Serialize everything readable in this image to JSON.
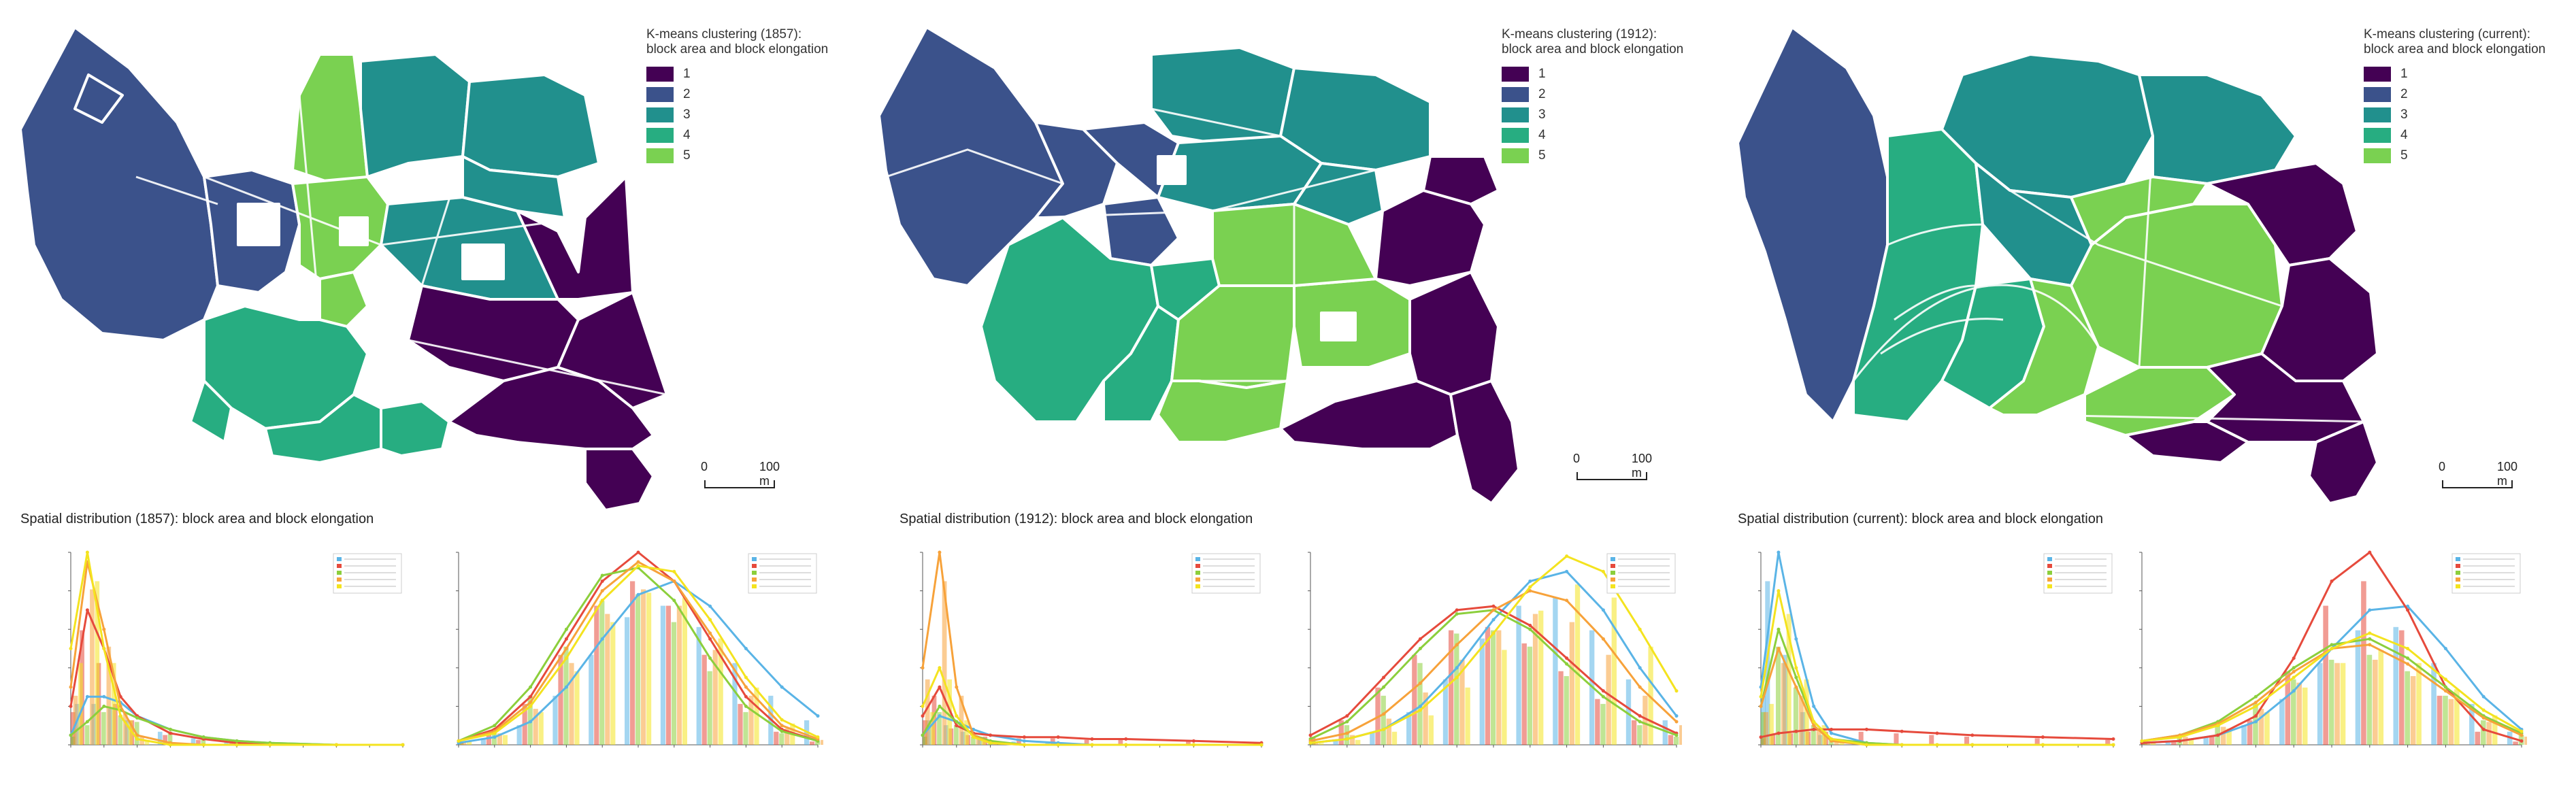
{
  "palette": [
    "#440154",
    "#3b528b",
    "#21908d",
    "#27ad81",
    "#7ad151"
  ],
  "series_colors": [
    "#5ab4e6",
    "#e64a3c",
    "#8ccf3c",
    "#f7a23a",
    "#f4e31f"
  ],
  "panels": [
    {
      "id": "1857",
      "legend_title": "K-means clustering (1857):\nblock area and block elongation",
      "legend_items": [
        "1",
        "2",
        "3",
        "4",
        "5"
      ],
      "scale_left": "0",
      "scale_right": "100 m",
      "dist_title": "Spatial distribution (1857): block area and block elongation"
    },
    {
      "id": "1912",
      "legend_title": "K-means clustering (1912):\nblock area and block elongation",
      "legend_items": [
        "1",
        "2",
        "3",
        "4",
        "5"
      ],
      "scale_left": "0",
      "scale_right": "100 m",
      "dist_title": "Spatial distribution (1912): block area and block elongation"
    },
    {
      "id": "current",
      "legend_title": "K-means clustering (current):\nblock area and block elongation",
      "legend_items": [
        "1",
        "2",
        "3",
        "4",
        "5"
      ],
      "scale_left": "0",
      "scale_right": "100 m",
      "dist_title": "Spatial distribution (current): block area and block elongation"
    }
  ],
  "chart_data": [
    {
      "type": "area",
      "panel": "1857",
      "variable": "block area",
      "x": [
        0,
        0.05,
        0.1,
        0.15,
        0.2,
        0.3,
        0.4,
        0.5,
        0.6,
        0.8,
        1.0
      ],
      "series": [
        {
          "values": [
            0.05,
            0.25,
            0.25,
            0.22,
            0.15,
            0.08,
            0.04,
            0.02,
            0.01,
            0,
            0
          ]
        },
        {
          "values": [
            0.2,
            0.7,
            0.5,
            0.25,
            0.15,
            0.06,
            0.03,
            0.01,
            0,
            0,
            0
          ]
        },
        {
          "values": [
            0.05,
            0.12,
            0.2,
            0.18,
            0.14,
            0.08,
            0.04,
            0.02,
            0.01,
            0,
            0
          ]
        },
        {
          "values": [
            0.3,
            0.95,
            0.6,
            0.2,
            0.05,
            0.01,
            0,
            0,
            0,
            0,
            0
          ]
        },
        {
          "values": [
            0.5,
            1.0,
            0.5,
            0.15,
            0.03,
            0,
            0,
            0,
            0,
            0,
            0
          ]
        }
      ]
    },
    {
      "type": "area",
      "panel": "1857",
      "variable": "block elongation",
      "x": [
        0,
        0.1,
        0.2,
        0.3,
        0.4,
        0.5,
        0.6,
        0.7,
        0.8,
        0.9,
        1.0
      ],
      "series": [
        {
          "values": [
            0.01,
            0.04,
            0.12,
            0.3,
            0.55,
            0.78,
            0.85,
            0.72,
            0.5,
            0.3,
            0.15
          ]
        },
        {
          "values": [
            0.02,
            0.08,
            0.25,
            0.55,
            0.85,
            1.0,
            0.85,
            0.55,
            0.25,
            0.08,
            0.02
          ]
        },
        {
          "values": [
            0.02,
            0.1,
            0.3,
            0.6,
            0.88,
            0.92,
            0.75,
            0.45,
            0.2,
            0.07,
            0.02
          ]
        },
        {
          "values": [
            0.02,
            0.07,
            0.22,
            0.5,
            0.8,
            0.95,
            0.85,
            0.58,
            0.3,
            0.1,
            0.03
          ]
        },
        {
          "values": [
            0.02,
            0.06,
            0.2,
            0.45,
            0.75,
            0.93,
            0.9,
            0.65,
            0.35,
            0.13,
            0.04
          ]
        }
      ]
    },
    {
      "type": "area",
      "panel": "1912",
      "variable": "block area",
      "x": [
        0,
        0.05,
        0.1,
        0.15,
        0.2,
        0.3,
        0.4,
        0.5,
        0.6,
        0.8,
        1.0
      ],
      "series": [
        {
          "values": [
            0.05,
            0.15,
            0.12,
            0.08,
            0.05,
            0.02,
            0.01,
            0,
            0,
            0,
            0
          ]
        },
        {
          "values": [
            0.15,
            0.3,
            0.1,
            0.06,
            0.05,
            0.04,
            0.04,
            0.03,
            0.03,
            0.02,
            0.01
          ]
        },
        {
          "values": [
            0.05,
            0.2,
            0.12,
            0.05,
            0.02,
            0,
            0,
            0,
            0,
            0,
            0
          ]
        },
        {
          "values": [
            0.4,
            1.0,
            0.3,
            0.05,
            0.01,
            0,
            0,
            0,
            0,
            0,
            0
          ]
        },
        {
          "values": [
            0.2,
            0.4,
            0.15,
            0.04,
            0.01,
            0,
            0,
            0,
            0,
            0,
            0
          ]
        }
      ]
    },
    {
      "type": "area",
      "panel": "1912",
      "variable": "block elongation",
      "x": [
        0,
        0.1,
        0.2,
        0.3,
        0.4,
        0.5,
        0.6,
        0.7,
        0.8,
        0.9,
        1.0
      ],
      "series": [
        {
          "values": [
            0.01,
            0.03,
            0.08,
            0.2,
            0.4,
            0.65,
            0.85,
            0.9,
            0.7,
            0.4,
            0.15
          ]
        },
        {
          "values": [
            0.05,
            0.15,
            0.35,
            0.55,
            0.7,
            0.72,
            0.62,
            0.45,
            0.28,
            0.15,
            0.06
          ]
        },
        {
          "values": [
            0.03,
            0.12,
            0.3,
            0.5,
            0.68,
            0.7,
            0.6,
            0.42,
            0.25,
            0.12,
            0.05
          ]
        },
        {
          "values": [
            0.02,
            0.06,
            0.16,
            0.32,
            0.52,
            0.7,
            0.8,
            0.75,
            0.55,
            0.3,
            0.12
          ]
        },
        {
          "values": [
            0.01,
            0.03,
            0.08,
            0.18,
            0.35,
            0.58,
            0.82,
            0.98,
            0.9,
            0.6,
            0.28
          ]
        }
      ]
    },
    {
      "type": "area",
      "panel": "current",
      "variable": "block area",
      "x": [
        0,
        0.05,
        0.1,
        0.15,
        0.2,
        0.3,
        0.4,
        0.5,
        0.6,
        0.8,
        1.0
      ],
      "series": [
        {
          "values": [
            0.3,
            1.0,
            0.55,
            0.2,
            0.06,
            0.01,
            0,
            0,
            0,
            0,
            0
          ]
        },
        {
          "values": [
            0.04,
            0.06,
            0.07,
            0.08,
            0.08,
            0.08,
            0.07,
            0.06,
            0.05,
            0.04,
            0.03
          ]
        },
        {
          "values": [
            0.2,
            0.6,
            0.35,
            0.12,
            0.03,
            0.01,
            0,
            0,
            0,
            0,
            0
          ]
        },
        {
          "values": [
            0.2,
            0.5,
            0.3,
            0.1,
            0.02,
            0,
            0,
            0,
            0,
            0,
            0
          ]
        },
        {
          "values": [
            0.25,
            0.8,
            0.4,
            0.12,
            0.03,
            0,
            0,
            0,
            0,
            0,
            0
          ]
        }
      ]
    },
    {
      "type": "area",
      "panel": "current",
      "variable": "block elongation",
      "x": [
        0,
        0.1,
        0.2,
        0.3,
        0.4,
        0.5,
        0.6,
        0.7,
        0.8,
        0.9,
        1.0
      ],
      "series": [
        {
          "values": [
            0.01,
            0.02,
            0.05,
            0.12,
            0.28,
            0.5,
            0.7,
            0.72,
            0.5,
            0.25,
            0.08
          ]
        },
        {
          "values": [
            0.01,
            0.02,
            0.05,
            0.15,
            0.45,
            0.85,
            1.0,
            0.7,
            0.3,
            0.08,
            0.02
          ]
        },
        {
          "values": [
            0.02,
            0.05,
            0.12,
            0.25,
            0.4,
            0.52,
            0.55,
            0.45,
            0.3,
            0.15,
            0.06
          ]
        },
        {
          "values": [
            0.02,
            0.05,
            0.11,
            0.22,
            0.38,
            0.5,
            0.52,
            0.42,
            0.28,
            0.14,
            0.05
          ]
        },
        {
          "values": [
            0.02,
            0.04,
            0.1,
            0.2,
            0.35,
            0.5,
            0.58,
            0.5,
            0.34,
            0.18,
            0.07
          ]
        }
      ]
    }
  ]
}
